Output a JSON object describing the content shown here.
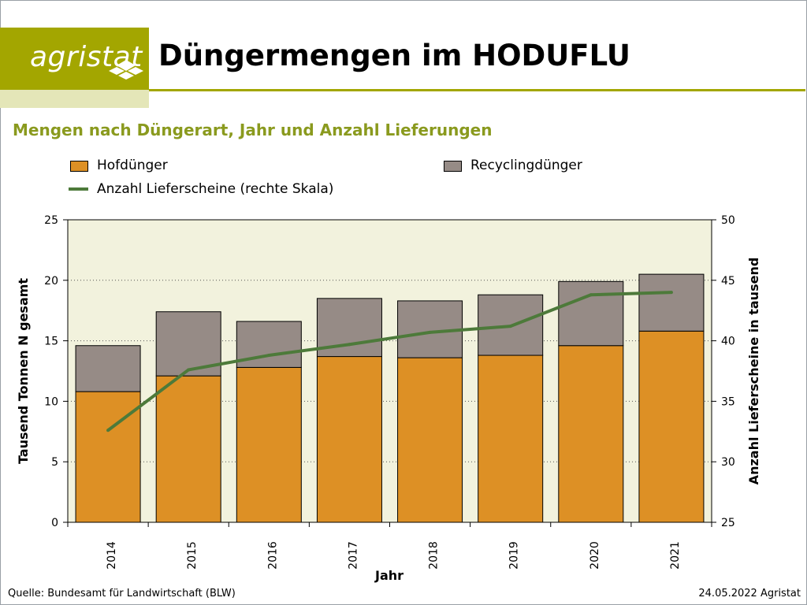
{
  "header": {
    "logo_text": "agristat",
    "title": "Düngermengen im HODUFLU",
    "subtitle": "Mengen nach Düngerart, Jahr und Anzahl Lieferungen"
  },
  "footer": {
    "source": "Quelle: Bundesamt für Landwirtschaft (BLW)",
    "date_credit": "24.05.2022 Agristat"
  },
  "colors": {
    "brand": "#a3a600",
    "brand_light": "#e4e6b8",
    "subtitle": "#8a9a1e",
    "hofduenger": "#dd9025",
    "recycling": "#968b86",
    "line": "#4d7a3a",
    "plot_bg": "#f2f2dd"
  },
  "chart_data": {
    "type": "bar",
    "stacked": true,
    "categories": [
      "2014",
      "2015",
      "2016",
      "2017",
      "2018",
      "2019",
      "2020",
      "2021"
    ],
    "series": [
      {
        "name": "Hofdünger",
        "axis": "left",
        "values": [
          10.8,
          12.1,
          12.8,
          13.7,
          13.6,
          13.8,
          14.6,
          15.8
        ]
      },
      {
        "name": "Recyclingdünger",
        "axis": "left",
        "values": [
          3.8,
          5.3,
          3.8,
          4.8,
          4.7,
          5.0,
          5.3,
          4.7
        ]
      },
      {
        "name": "Anzahl Lieferscheine (rechte Skala)",
        "type": "line",
        "axis": "right",
        "values": [
          32.6,
          37.6,
          38.8,
          39.7,
          40.7,
          41.2,
          43.8,
          44.0
        ]
      }
    ],
    "xlabel": "Jahr",
    "ylabel": "Tausend Tonnen N gesamt",
    "y2label": "Anzahl Lieferscheine in tausend",
    "ylim": [
      0,
      25
    ],
    "y2lim": [
      25,
      50
    ],
    "yticks": [
      0,
      5,
      10,
      15,
      20,
      25
    ],
    "y2ticks": [
      25,
      30,
      35,
      40,
      45,
      50
    ],
    "grid": "horizontal dotted",
    "legend_position": "top"
  }
}
